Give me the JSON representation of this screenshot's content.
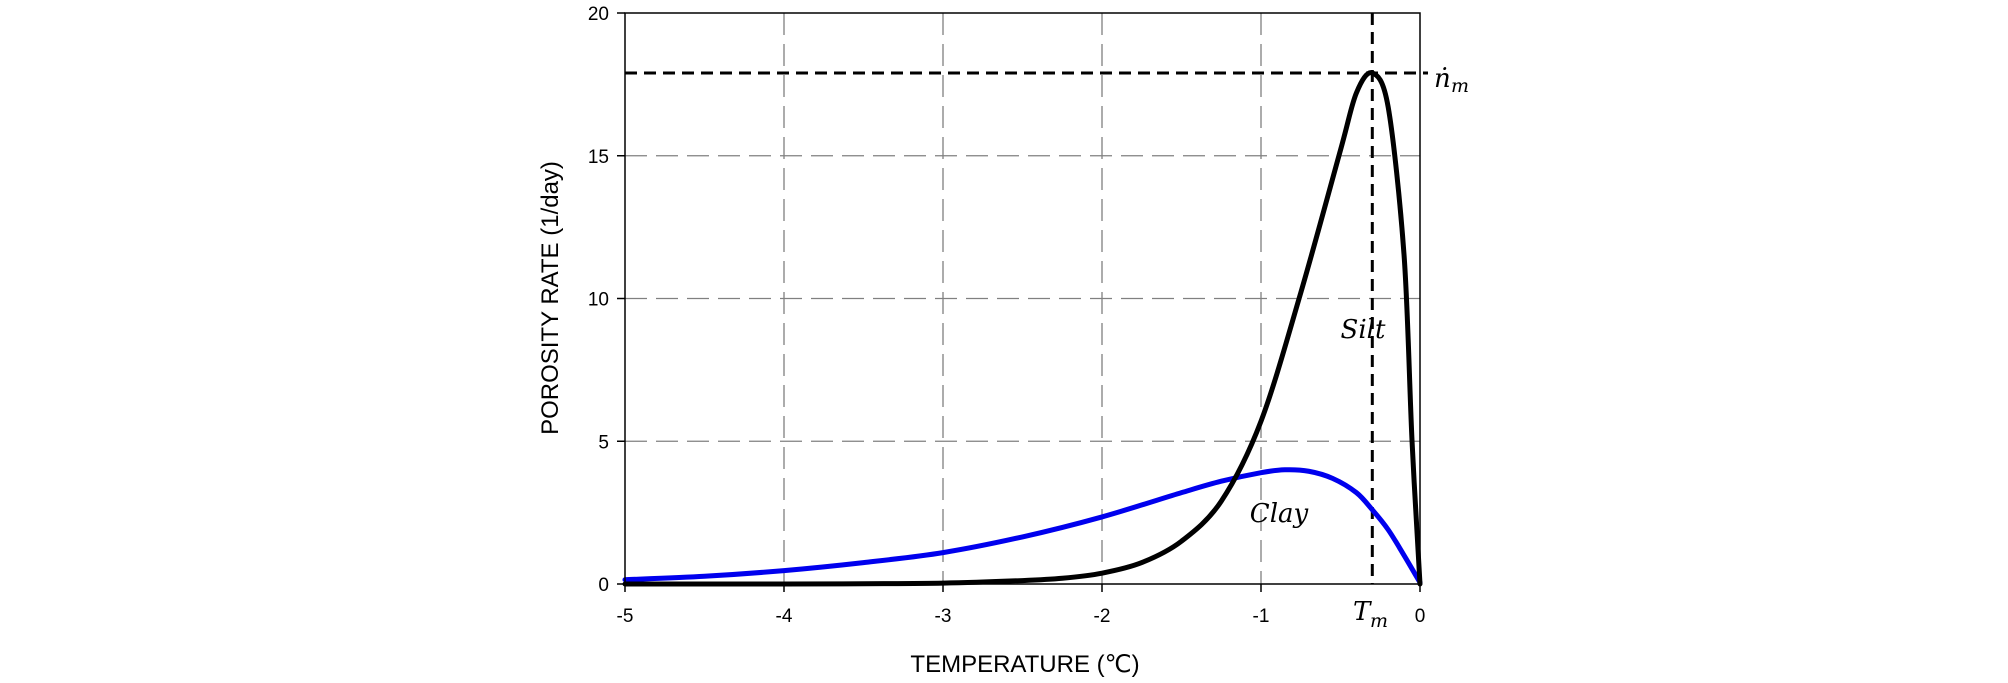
{
  "chart_data": {
    "type": "line",
    "title": "",
    "xlabel": "TEMPERATURE (℃)",
    "ylabel": "POROSITY RATE (1/day)",
    "xlim": [
      -5,
      0
    ],
    "ylim": [
      0,
      20
    ],
    "grid": true,
    "x_ticks": [
      {
        "value": -5,
        "label": "-5"
      },
      {
        "value": -4,
        "label": "-4"
      },
      {
        "value": -3,
        "label": "-3"
      },
      {
        "value": -2,
        "label": "-2"
      },
      {
        "value": -1,
        "label": "-1"
      },
      {
        "value": 0,
        "label": "0"
      }
    ],
    "y_ticks": [
      {
        "value": 0,
        "label": "0"
      },
      {
        "value": 5,
        "label": "5"
      },
      {
        "value": 10,
        "label": "10"
      },
      {
        "value": 15,
        "label": "15"
      },
      {
        "value": 20,
        "label": "20"
      }
    ],
    "series": [
      {
        "color": "#000000",
        "points": [
          [
            -5.0,
            0.0
          ],
          [
            -4.0,
            0.0
          ],
          [
            -3.5,
            0.01
          ],
          [
            -3.0,
            0.03
          ],
          [
            -2.5,
            0.12
          ],
          [
            -2.25,
            0.2
          ],
          [
            -2.0,
            0.38
          ],
          [
            -1.75,
            0.75
          ],
          [
            -1.5,
            1.5
          ],
          [
            -1.25,
            2.9
          ],
          [
            -1.0,
            5.7
          ],
          [
            -0.75,
            10.2
          ],
          [
            -0.5,
            15.2
          ],
          [
            -0.4,
            17.2
          ],
          [
            -0.3,
            17.9
          ],
          [
            -0.2,
            16.7
          ],
          [
            -0.1,
            11.5
          ],
          [
            -0.05,
            5.0
          ],
          [
            0.0,
            0.0
          ]
        ]
      },
      {
        "color": "#0000ee",
        "points": [
          [
            -5.0,
            0.15
          ],
          [
            -4.5,
            0.27
          ],
          [
            -4.0,
            0.47
          ],
          [
            -3.5,
            0.75
          ],
          [
            -3.0,
            1.1
          ],
          [
            -2.5,
            1.65
          ],
          [
            -2.0,
            2.35
          ],
          [
            -1.5,
            3.2
          ],
          [
            -1.25,
            3.6
          ],
          [
            -1.0,
            3.9
          ],
          [
            -0.85,
            4.0
          ],
          [
            -0.7,
            3.95
          ],
          [
            -0.55,
            3.7
          ],
          [
            -0.4,
            3.2
          ],
          [
            -0.3,
            2.6
          ],
          [
            -0.2,
            1.9
          ],
          [
            -0.1,
            1.0
          ],
          [
            0.0,
            0.05
          ]
        ]
      }
    ],
    "reference_lines": {
      "peak_rate_value": 17.9,
      "peak_temperature_value": -0.3
    },
    "annotations": {
      "silt": "Silt",
      "clay": "Clay",
      "n_symbol": "ṅ",
      "n_sub": "m",
      "t_symbol": "T",
      "t_sub": "m"
    }
  }
}
